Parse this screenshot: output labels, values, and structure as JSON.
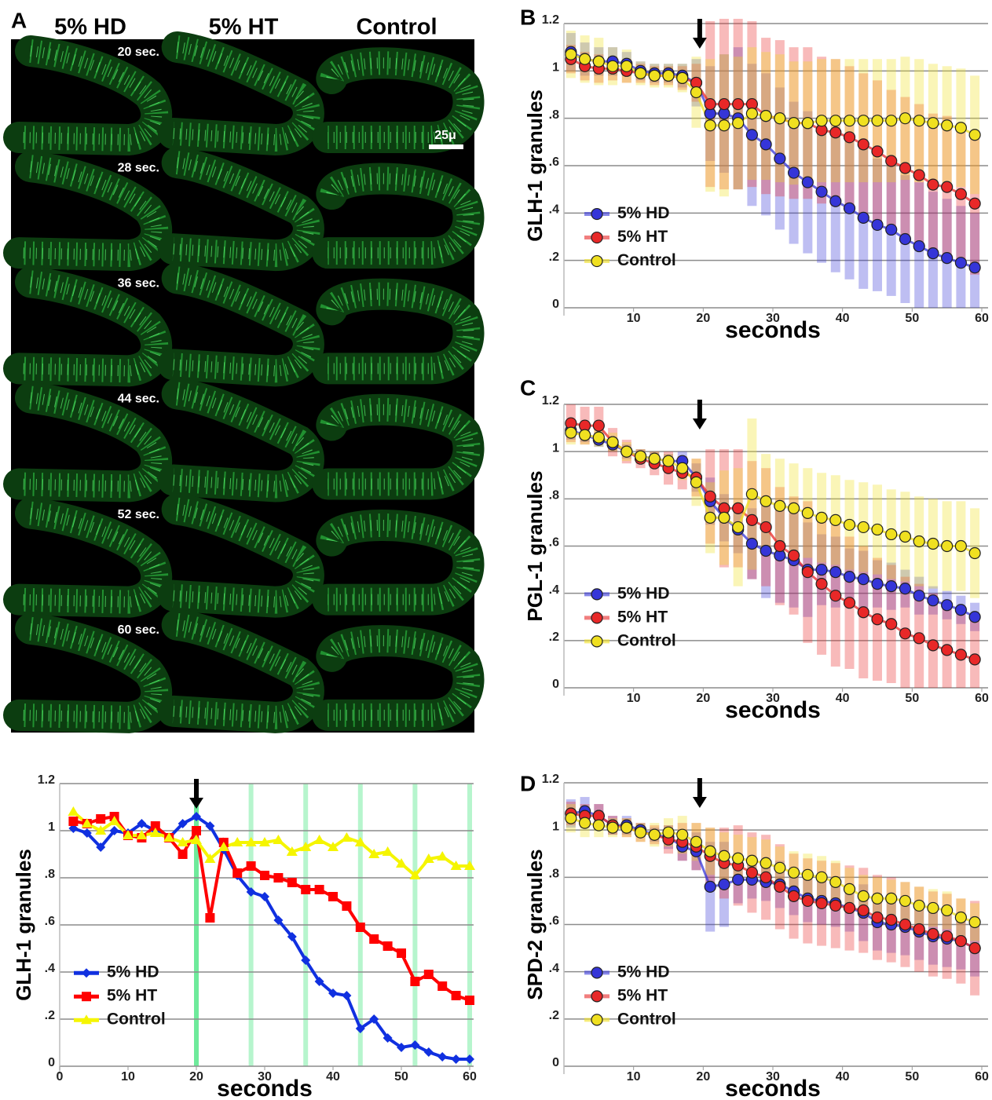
{
  "panel_labels": [
    "A",
    "B",
    "C",
    "D"
  ],
  "micrograph": {
    "columns": [
      "5% HD",
      "5% HT",
      "Control"
    ],
    "times": [
      "20 sec.",
      "28 sec.",
      "36 sec.",
      "44 sec.",
      "52 sec.",
      "60 sec."
    ],
    "scale_bar": "25μ"
  },
  "chart_data": [
    {
      "type": "line",
      "ylabel": "GLH-1 granules",
      "xlabel": "seconds",
      "xlim": [
        0,
        60
      ],
      "ylim": [
        0,
        1.2
      ],
      "xticks": [
        10,
        20,
        30,
        40,
        50,
        60
      ],
      "yticks": [
        0,
        {
          "value": 0.2,
          "label": ".2"
        },
        {
          "value": 0.4,
          "label": ".4"
        },
        {
          "value": 0.6,
          "label": ".6"
        },
        {
          "value": 0.8,
          "label": ".8"
        },
        1,
        1.2
      ],
      "grid": true,
      "legend": "left",
      "arrow_x": 19.5,
      "marker": "circle",
      "x": [
        1,
        3,
        5,
        7,
        9,
        11,
        13,
        15,
        17,
        19,
        21,
        23,
        25,
        27,
        29,
        31,
        33,
        35,
        37,
        39,
        41,
        43,
        45,
        47,
        49,
        51,
        53,
        55,
        57,
        59
      ],
      "series": [
        {
          "name": "5% HD",
          "color": "#3535d8",
          "values": [
            1.08,
            1.05,
            1.04,
            1.04,
            1.03,
            1.0,
            0.99,
            0.99,
            0.98,
            0.95,
            0.82,
            0.82,
            0.8,
            0.73,
            0.69,
            0.63,
            0.57,
            0.53,
            0.49,
            0.45,
            0.42,
            0.38,
            0.35,
            0.33,
            0.29,
            0.26,
            0.23,
            0.21,
            0.19,
            0.17
          ],
          "errors": [
            0.08,
            0.07,
            0.06,
            0.06,
            0.05,
            0.04,
            0.04,
            0.04,
            0.05,
            0.1,
            0.2,
            0.25,
            0.3,
            0.3,
            0.3,
            0.3,
            0.3,
            0.3,
            0.3,
            0.3,
            0.3,
            0.3,
            0.28,
            0.28,
            0.27,
            0.27,
            0.26,
            0.25,
            0.24,
            0.23
          ]
        },
        {
          "name": "5% HT",
          "color": "#e82828",
          "values": [
            1.05,
            1.02,
            1.01,
            1.01,
            1.0,
            0.99,
            0.98,
            0.98,
            0.97,
            0.95,
            0.86,
            0.86,
            0.86,
            0.86,
            0.81,
            0.8,
            0.78,
            0.78,
            0.75,
            0.74,
            0.72,
            0.69,
            0.66,
            0.62,
            0.59,
            0.56,
            0.52,
            0.51,
            0.48,
            0.44
          ],
          "errors": [
            0.06,
            0.06,
            0.06,
            0.05,
            0.05,
            0.04,
            0.04,
            0.04,
            0.05,
            0.08,
            0.35,
            0.36,
            0.36,
            0.35,
            0.33,
            0.33,
            0.32,
            0.32,
            0.31,
            0.31,
            0.3,
            0.3,
            0.3,
            0.3,
            0.3,
            0.3,
            0.3,
            0.3,
            0.3,
            0.3
          ]
        },
        {
          "name": "Control",
          "color": "#f0e020",
          "values": [
            1.07,
            1.05,
            1.04,
            1.02,
            1.02,
            0.99,
            0.98,
            0.98,
            0.97,
            0.91,
            0.77,
            0.77,
            0.78,
            0.82,
            0.81,
            0.8,
            0.78,
            0.78,
            0.79,
            0.79,
            0.79,
            0.79,
            0.79,
            0.79,
            0.8,
            0.79,
            0.78,
            0.77,
            0.76,
            0.73
          ],
          "errors": [
            0.1,
            0.1,
            0.1,
            0.08,
            0.07,
            0.05,
            0.05,
            0.05,
            0.06,
            0.15,
            0.28,
            0.3,
            0.28,
            0.28,
            0.27,
            0.27,
            0.26,
            0.26,
            0.26,
            0.26,
            0.26,
            0.26,
            0.26,
            0.26,
            0.26,
            0.26,
            0.25,
            0.25,
            0.25,
            0.25
          ]
        }
      ]
    },
    {
      "type": "line",
      "ylabel": "PGL-1 granules",
      "xlabel": "seconds",
      "xlim": [
        0,
        60
      ],
      "ylim": [
        0,
        1.2
      ],
      "xticks": [
        10,
        20,
        30,
        40,
        50,
        60
      ],
      "yticks": [
        0,
        {
          "value": 0.2,
          "label": ".2"
        },
        {
          "value": 0.4,
          "label": ".4"
        },
        {
          "value": 0.6,
          "label": ".6"
        },
        {
          "value": 0.8,
          "label": ".8"
        },
        1,
        1.2
      ],
      "grid": true,
      "legend": "left",
      "arrow_x": 19.5,
      "marker": "circle",
      "x": [
        1,
        3,
        5,
        7,
        9,
        11,
        13,
        15,
        17,
        19,
        21,
        23,
        25,
        27,
        29,
        31,
        33,
        35,
        37,
        39,
        41,
        43,
        45,
        47,
        49,
        51,
        53,
        55,
        57,
        59
      ],
      "series": [
        {
          "name": "5% HD",
          "color": "#3535d8",
          "values": [
            1.09,
            1.07,
            1.05,
            1.03,
            1.0,
            0.98,
            0.97,
            0.96,
            0.96,
            0.89,
            0.79,
            0.72,
            0.67,
            0.61,
            0.58,
            0.56,
            0.54,
            0.5,
            0.5,
            0.49,
            0.47,
            0.46,
            0.44,
            0.43,
            0.42,
            0.39,
            0.37,
            0.35,
            0.33,
            0.3
          ],
          "errors": [
            0.04,
            0.03,
            0.03,
            0.03,
            0.03,
            0.03,
            0.03,
            0.03,
            0.04,
            0.06,
            0.1,
            0.1,
            0.1,
            0.15,
            0.2,
            0.2,
            0.2,
            0.2,
            0.15,
            0.15,
            0.12,
            0.12,
            0.1,
            0.1,
            0.08,
            0.08,
            0.06,
            0.06,
            0.06,
            0.06
          ]
        },
        {
          "name": "5% HT",
          "color": "#e82828",
          "values": [
            1.12,
            1.11,
            1.11,
            1.04,
            1.0,
            0.97,
            0.95,
            0.93,
            0.91,
            0.89,
            0.81,
            0.76,
            0.76,
            0.71,
            0.68,
            0.6,
            0.56,
            0.49,
            0.44,
            0.39,
            0.36,
            0.32,
            0.29,
            0.27,
            0.23,
            0.21,
            0.18,
            0.16,
            0.14,
            0.12
          ],
          "errors": [
            0.08,
            0.08,
            0.08,
            0.06,
            0.05,
            0.04,
            0.05,
            0.07,
            0.07,
            0.08,
            0.2,
            0.25,
            0.25,
            0.25,
            0.25,
            0.25,
            0.25,
            0.3,
            0.3,
            0.3,
            0.28,
            0.28,
            0.26,
            0.25,
            0.24,
            0.23,
            0.22,
            0.21,
            0.2,
            0.19
          ]
        },
        {
          "name": "Control",
          "color": "#f0e020",
          "values": [
            1.08,
            1.07,
            1.06,
            1.04,
            1.0,
            0.98,
            0.97,
            0.96,
            0.93,
            0.87,
            0.72,
            0.72,
            0.68,
            0.82,
            0.79,
            0.77,
            0.76,
            0.74,
            0.72,
            0.71,
            0.69,
            0.68,
            0.67,
            0.65,
            0.64,
            0.62,
            0.61,
            0.6,
            0.6,
            0.57
          ],
          "errors": [
            0.05,
            0.04,
            0.04,
            0.04,
            0.04,
            0.03,
            0.03,
            0.03,
            0.05,
            0.1,
            0.15,
            0.2,
            0.25,
            0.32,
            0.2,
            0.2,
            0.19,
            0.19,
            0.19,
            0.19,
            0.19,
            0.19,
            0.19,
            0.19,
            0.19,
            0.19,
            0.19,
            0.19,
            0.19,
            0.19
          ]
        }
      ]
    },
    {
      "type": "line",
      "ylabel": "SPD-2 granules",
      "xlabel": "seconds",
      "xlim": [
        0,
        60
      ],
      "ylim": [
        0,
        1.2
      ],
      "xticks": [
        10,
        20,
        30,
        40,
        50,
        60
      ],
      "yticks": [
        0,
        {
          "value": 0.2,
          "label": ".2"
        },
        {
          "value": 0.4,
          "label": ".4"
        },
        {
          "value": 0.6,
          "label": ".6"
        },
        {
          "value": 0.8,
          "label": ".8"
        },
        1,
        1.2
      ],
      "grid": true,
      "legend": "left",
      "arrow_x": 19.5,
      "marker": "circle",
      "x": [
        1,
        3,
        5,
        7,
        9,
        11,
        13,
        15,
        17,
        19,
        21,
        23,
        25,
        27,
        29,
        31,
        33,
        35,
        37,
        39,
        41,
        43,
        45,
        47,
        49,
        51,
        53,
        55,
        57,
        59
      ],
      "series": [
        {
          "name": "5% HD",
          "color": "#3535d8",
          "values": [
            1.07,
            1.08,
            1.06,
            1.02,
            1.02,
            1.0,
            0.98,
            0.97,
            0.93,
            0.91,
            0.76,
            0.77,
            0.79,
            0.79,
            0.78,
            0.77,
            0.74,
            0.71,
            0.7,
            0.69,
            0.67,
            0.65,
            0.61,
            0.6,
            0.59,
            0.57,
            0.55,
            0.54,
            0.53,
            0.5
          ],
          "errors": [
            0.06,
            0.06,
            0.05,
            0.04,
            0.04,
            0.03,
            0.03,
            0.05,
            0.06,
            0.08,
            0.19,
            0.18,
            0.1,
            0.08,
            0.08,
            0.1,
            0.1,
            0.1,
            0.1,
            0.1,
            0.1,
            0.12,
            0.12,
            0.12,
            0.12,
            0.12,
            0.12,
            0.12,
            0.12,
            0.12
          ]
        },
        {
          "name": "5% HT",
          "color": "#e82828",
          "values": [
            1.07,
            1.06,
            1.06,
            1.02,
            1.01,
            0.99,
            0.98,
            0.96,
            0.95,
            0.93,
            0.89,
            0.86,
            0.85,
            0.82,
            0.8,
            0.76,
            0.72,
            0.7,
            0.69,
            0.68,
            0.67,
            0.66,
            0.63,
            0.62,
            0.6,
            0.58,
            0.56,
            0.55,
            0.53,
            0.5
          ],
          "errors": [
            0.05,
            0.05,
            0.05,
            0.04,
            0.04,
            0.04,
            0.04,
            0.06,
            0.08,
            0.1,
            0.12,
            0.15,
            0.17,
            0.17,
            0.18,
            0.18,
            0.18,
            0.18,
            0.18,
            0.18,
            0.18,
            0.18,
            0.18,
            0.18,
            0.18,
            0.18,
            0.18,
            0.18,
            0.18,
            0.2
          ]
        },
        {
          "name": "Control",
          "color": "#f0e020",
          "values": [
            1.05,
            1.03,
            1.02,
            1.01,
            1.01,
            0.99,
            0.98,
            0.99,
            0.98,
            0.95,
            0.91,
            0.89,
            0.88,
            0.87,
            0.86,
            0.84,
            0.82,
            0.81,
            0.8,
            0.78,
            0.75,
            0.72,
            0.71,
            0.71,
            0.7,
            0.68,
            0.67,
            0.66,
            0.63,
            0.61
          ],
          "errors": [
            0.06,
            0.06,
            0.05,
            0.04,
            0.04,
            0.04,
            0.05,
            0.06,
            0.08,
            0.08,
            0.1,
            0.1,
            0.1,
            0.1,
            0.1,
            0.09,
            0.09,
            0.09,
            0.09,
            0.09,
            0.09,
            0.09,
            0.09,
            0.08,
            0.08,
            0.08,
            0.08,
            0.08,
            0.08,
            0.08
          ]
        }
      ]
    },
    {
      "type": "line",
      "ylabel": "GLH-1 granules",
      "xlabel": "seconds",
      "xlim": [
        0,
        60
      ],
      "ylim": [
        0,
        1.2
      ],
      "xticks": [
        0,
        10,
        20,
        30,
        40,
        50,
        60
      ],
      "yticks": [
        0,
        {
          "value": 0.2,
          "label": ".2"
        },
        {
          "value": 0.4,
          "label": ".4"
        },
        {
          "value": 0.6,
          "label": ".6"
        },
        {
          "value": 0.8,
          "label": ".8"
        },
        1,
        1.2
      ],
      "grid": true,
      "legend": "left",
      "arrow_x": 20,
      "highlight_x": [
        20,
        28,
        36,
        44,
        52,
        60
      ],
      "highlight_color": "#5ee890",
      "x": [
        2,
        4,
        6,
        8,
        10,
        12,
        14,
        16,
        18,
        20,
        22,
        24,
        26,
        28,
        30,
        32,
        34,
        36,
        38,
        40,
        42,
        44,
        46,
        48,
        50,
        52,
        54,
        56,
        58,
        60
      ],
      "series": [
        {
          "name": "5% HD",
          "color": "#1030e0",
          "marker": "diamond",
          "values": [
            1.01,
            0.99,
            0.93,
            1.0,
            0.99,
            1.03,
            1.0,
            0.97,
            1.03,
            1.06,
            1.02,
            0.92,
            0.81,
            0.74,
            0.72,
            0.62,
            0.55,
            0.45,
            0.36,
            0.31,
            0.3,
            0.16,
            0.2,
            0.12,
            0.08,
            0.09,
            0.06,
            0.04,
            0.03,
            0.03
          ]
        },
        {
          "name": "5% HT",
          "color": "#ff0000",
          "marker": "square",
          "values": [
            1.04,
            1.03,
            1.05,
            1.06,
            0.98,
            0.97,
            1.02,
            0.97,
            0.9,
            1.0,
            0.63,
            0.95,
            0.82,
            0.85,
            0.81,
            0.8,
            0.78,
            0.75,
            0.75,
            0.72,
            0.68,
            0.59,
            0.54,
            0.51,
            0.48,
            0.36,
            0.39,
            0.34,
            0.3,
            0.28
          ]
        },
        {
          "name": "Control",
          "color": "#f5f500",
          "marker": "triangle",
          "values": [
            1.08,
            1.03,
            1.0,
            1.04,
            0.98,
            0.98,
            0.99,
            0.97,
            0.95,
            0.96,
            0.88,
            0.93,
            0.95,
            0.95,
            0.95,
            0.96,
            0.91,
            0.93,
            0.96,
            0.93,
            0.97,
            0.95,
            0.9,
            0.91,
            0.86,
            0.81,
            0.88,
            0.89,
            0.85,
            0.85
          ]
        }
      ]
    }
  ]
}
